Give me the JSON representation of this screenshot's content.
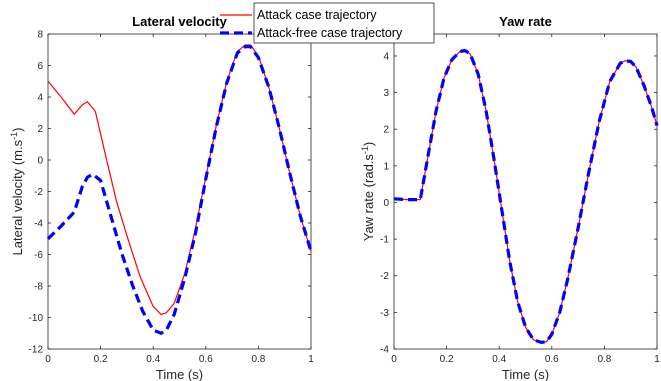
{
  "legend": {
    "entries": [
      {
        "label": "Attack case trajectory",
        "color": "#ff0000",
        "style": "solid"
      },
      {
        "label": "Attack-free case trajectory",
        "color": "#0000ff",
        "style": "dashed"
      }
    ]
  },
  "chart_data": [
    {
      "type": "line",
      "title": "Lateral velocity",
      "xlabel": "Time (s)",
      "ylabel": "Lateral velocity (m.s",
      "ylabel_sup": "-1",
      "ylabel_end": ")",
      "xlim": [
        0,
        1
      ],
      "ylim": [
        -12,
        8
      ],
      "xticks": [
        "0",
        "0.2",
        "0.4",
        "0.6",
        "0.8",
        "1"
      ],
      "yticks": [
        "-12",
        "-10",
        "-8",
        "-6",
        "-4",
        "-2",
        "0",
        "2",
        "4",
        "6",
        "8"
      ],
      "grid": false,
      "series": [
        {
          "name": "Attack case trajectory",
          "color": "#ff0000",
          "style": "solid",
          "x": [
            0,
            0.05,
            0.1,
            0.13,
            0.15,
            0.18,
            0.22,
            0.26,
            0.3,
            0.35,
            0.4,
            0.43,
            0.45,
            0.48,
            0.52,
            0.56,
            0.6,
            0.64,
            0.68,
            0.72,
            0.75,
            0.77,
            0.8,
            0.84,
            0.88,
            0.92,
            0.96,
            1.0
          ],
          "y": [
            5.0,
            4.0,
            2.9,
            3.5,
            3.7,
            3.1,
            0.2,
            -2.6,
            -4.8,
            -7.4,
            -9.3,
            -9.8,
            -9.7,
            -9.1,
            -7.2,
            -4.4,
            -1.1,
            2.2,
            5.0,
            6.9,
            7.3,
            7.3,
            6.6,
            4.6,
            2.0,
            -0.9,
            -3.6,
            -5.8
          ]
        },
        {
          "name": "Attack-free case trajectory",
          "color": "#0000ff",
          "style": "dashed",
          "x": [
            0,
            0.05,
            0.1,
            0.13,
            0.15,
            0.17,
            0.2,
            0.24,
            0.28,
            0.32,
            0.36,
            0.4,
            0.43,
            0.45,
            0.48,
            0.52,
            0.56,
            0.6,
            0.64,
            0.68,
            0.72,
            0.75,
            0.77,
            0.8,
            0.84,
            0.88,
            0.92,
            0.96,
            1.0
          ],
          "y": [
            -5.0,
            -4.2,
            -3.3,
            -1.7,
            -1.1,
            -0.9,
            -1.3,
            -3.6,
            -5.9,
            -7.9,
            -9.6,
            -10.8,
            -11.0,
            -10.8,
            -9.8,
            -7.5,
            -4.7,
            -1.2,
            2.1,
            4.9,
            6.8,
            7.2,
            7.2,
            6.5,
            4.6,
            2.0,
            -0.9,
            -3.6,
            -5.8
          ]
        }
      ]
    },
    {
      "type": "line",
      "title": "Yaw rate",
      "xlabel": "Time (s)",
      "ylabel": "Yaw rate (rad.s",
      "ylabel_sup": "-1",
      "ylabel_end": ")",
      "xlim": [
        0,
        1
      ],
      "ylim": [
        -4,
        4.6
      ],
      "xticks": [
        "0",
        "0.2",
        "0.4",
        "0.6",
        "0.8",
        "1"
      ],
      "yticks": [
        "-4",
        "-3",
        "-2",
        "-1",
        "0",
        "1",
        "2",
        "3",
        "4"
      ],
      "grid": false,
      "series": [
        {
          "name": "Attack case trajectory",
          "color": "#ff0000",
          "style": "solid",
          "x": [
            0,
            0.05,
            0.1,
            0.13,
            0.16,
            0.19,
            0.22,
            0.25,
            0.27,
            0.29,
            0.32,
            0.35,
            0.38,
            0.41,
            0.44,
            0.47,
            0.5,
            0.53,
            0.56,
            0.58,
            0.6,
            0.63,
            0.66,
            0.7,
            0.74,
            0.78,
            0.82,
            0.86,
            0.88,
            0.9,
            0.92,
            0.95,
            0.98,
            1.0
          ],
          "y": [
            0.1,
            0.08,
            0.08,
            1.3,
            2.5,
            3.4,
            3.9,
            4.12,
            4.15,
            4.05,
            3.5,
            2.5,
            1.2,
            -0.2,
            -1.6,
            -2.7,
            -3.4,
            -3.75,
            -3.82,
            -3.8,
            -3.6,
            -3.0,
            -2.1,
            -0.7,
            0.8,
            2.2,
            3.3,
            3.8,
            3.87,
            3.85,
            3.7,
            3.2,
            2.6,
            2.1
          ]
        },
        {
          "name": "Attack-free case trajectory",
          "color": "#0000ff",
          "style": "dashed",
          "x": [
            0,
            0.05,
            0.1,
            0.13,
            0.16,
            0.19,
            0.22,
            0.25,
            0.27,
            0.29,
            0.32,
            0.35,
            0.38,
            0.41,
            0.44,
            0.47,
            0.5,
            0.53,
            0.56,
            0.58,
            0.6,
            0.63,
            0.66,
            0.7,
            0.74,
            0.78,
            0.82,
            0.86,
            0.88,
            0.9,
            0.92,
            0.95,
            0.98,
            1.0
          ],
          "y": [
            0.1,
            0.08,
            0.08,
            1.3,
            2.5,
            3.4,
            3.9,
            4.12,
            4.15,
            4.05,
            3.5,
            2.5,
            1.2,
            -0.2,
            -1.6,
            -2.7,
            -3.4,
            -3.75,
            -3.82,
            -3.8,
            -3.6,
            -3.0,
            -2.1,
            -0.7,
            0.8,
            2.2,
            3.3,
            3.8,
            3.87,
            3.85,
            3.7,
            3.2,
            2.6,
            2.1
          ]
        }
      ]
    }
  ]
}
